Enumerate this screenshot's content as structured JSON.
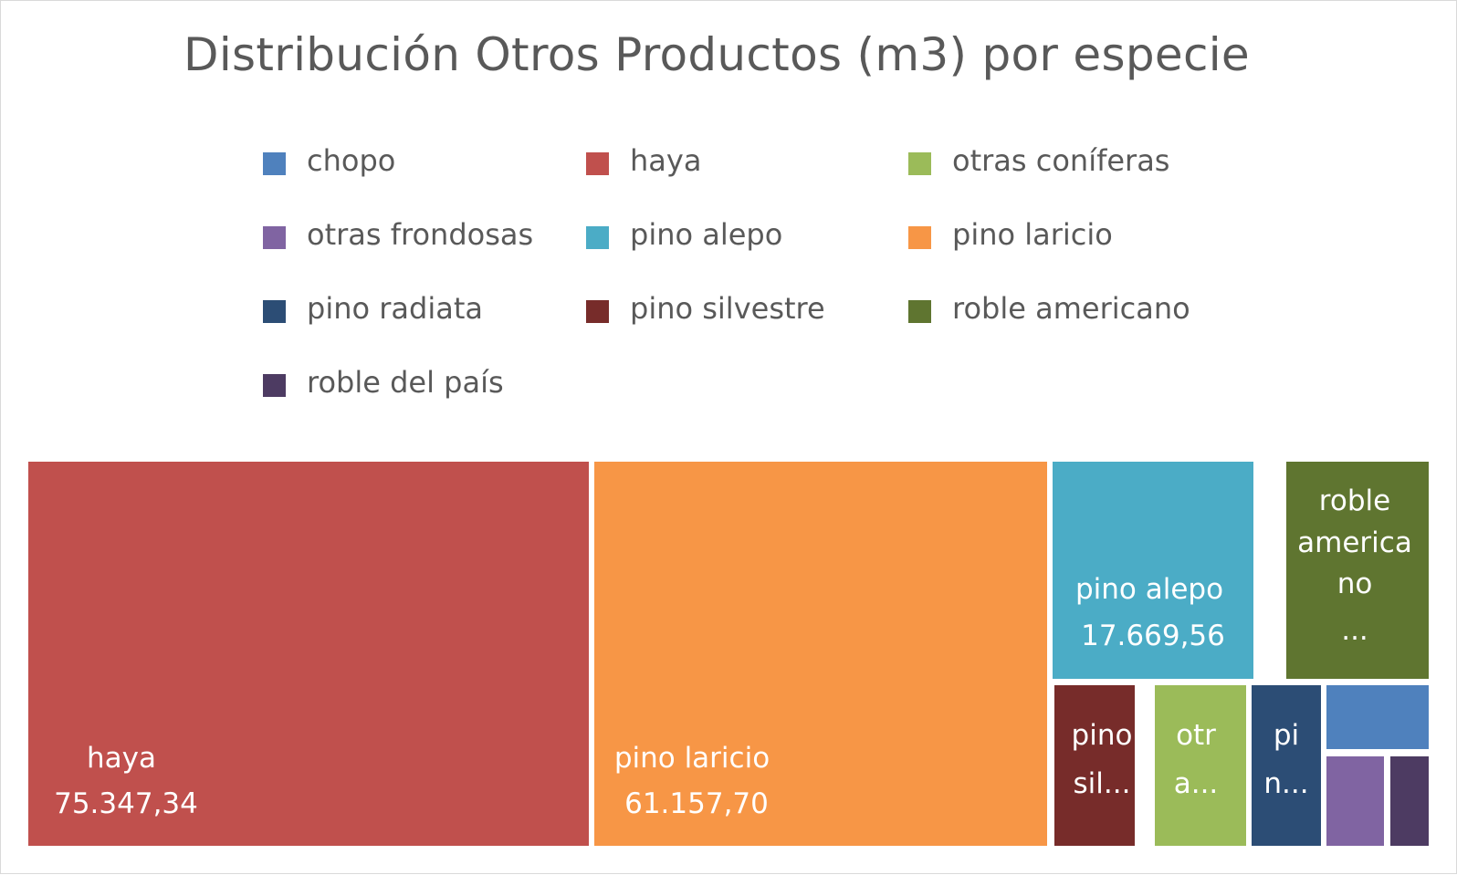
{
  "chart_data": {
    "type": "treemap",
    "title": "Distribución Otros Productos (m3) por especie",
    "legend_position": "top",
    "series": [
      {
        "name": "chopo",
        "color": "#4f81bd",
        "value": null,
        "label_lines": []
      },
      {
        "name": "haya",
        "color": "#c0504d",
        "value": 75347.34,
        "label_lines": [
          "haya",
          "75.347,34"
        ]
      },
      {
        "name": "otras coníferas",
        "color": "#9bbb59",
        "value": null,
        "label_lines": [
          "otr",
          "a..."
        ]
      },
      {
        "name": "otras frondosas",
        "color": "#8064a2",
        "value": null,
        "label_lines": []
      },
      {
        "name": "pino alepo",
        "color": "#4bacc6",
        "value": 17669.56,
        "label_lines": [
          "pino alepo",
          "17.669,56"
        ]
      },
      {
        "name": "pino laricio",
        "color": "#f79646",
        "value": 61157.7,
        "label_lines": [
          "pino laricio",
          "61.157,70"
        ]
      },
      {
        "name": "pino radiata",
        "color": "#2c4d75",
        "value": null,
        "label_lines": [
          "pi",
          "n..."
        ]
      },
      {
        "name": "pino silvestre",
        "color": "#772c2a",
        "value": null,
        "label_lines": [
          "pino",
          "sil..."
        ]
      },
      {
        "name": "roble americano",
        "color": "#5f7530",
        "value": null,
        "label_lines": [
          "roble",
          "america",
          "no",
          "..."
        ]
      },
      {
        "name": "roble del país",
        "color": "#4d3b62",
        "value": null,
        "label_lines": []
      }
    ]
  }
}
